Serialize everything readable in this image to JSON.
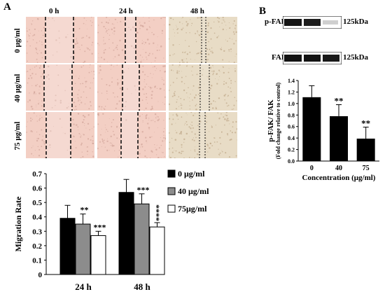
{
  "panel_a": {
    "letter": "A",
    "time_headers": [
      "0 h",
      "24 h",
      "48 h"
    ],
    "dose_labels": [
      "0 μg/ml",
      "40 μg/ml",
      "75 μg/ml"
    ]
  },
  "panel_b": {
    "letter": "B",
    "blot_rows": [
      {
        "label": "p-FAK",
        "size": "125kDa"
      },
      {
        "label": "FAK",
        "size": "125kDa"
      }
    ]
  },
  "colors": {
    "bar_black": "#000000",
    "bar_gray": "#8c8c8c",
    "bar_white": "#ffffff",
    "micro_pink": "#f3cfc4",
    "micro_beige": "#e8dcc6"
  },
  "chart_data": [
    {
      "type": "bar",
      "categories": [
        "24 h",
        "48 h"
      ],
      "series": [
        {
          "name": "0 μg/ml",
          "values": [
            0.39,
            0.57
          ],
          "errors": [
            0.09,
            0.09
          ],
          "marks": [
            "",
            ""
          ]
        },
        {
          "name": "40 μg/ml",
          "values": [
            0.35,
            0.49
          ],
          "errors": [
            0.07,
            0.07
          ],
          "marks": [
            "**",
            "***"
          ]
        },
        {
          "name": "75μg/ml",
          "values": [
            0.27,
            0.33
          ],
          "errors": [
            0.03,
            0.03
          ],
          "marks": [
            "***",
            "****"
          ]
        }
      ],
      "ylabel": "Migration Rate",
      "xlabel": "",
      "ylim": [
        0,
        0.7
      ],
      "yticks": [
        "0",
        "0.1",
        "0.2",
        "0.3",
        "0.4",
        "0.5",
        "0.6",
        "0.7"
      ],
      "legend_placement": "right"
    },
    {
      "type": "bar",
      "categories": [
        "0",
        "40",
        "75"
      ],
      "values": [
        1.11,
        0.78,
        0.39
      ],
      "errors": [
        0.2,
        0.2,
        0.2
      ],
      "marks": [
        "",
        "**",
        "**"
      ],
      "ylabel": "p-FAK/ FAK",
      "ylabel2": "(Fold change relative to control)",
      "xlabel": "Concentration (μg/ml)",
      "ylim": [
        0,
        1.4
      ],
      "yticks": [
        "0.0",
        "0.2",
        "0.4",
        "0.6",
        "0.8",
        "1.0",
        "1.2",
        "1.4"
      ]
    }
  ]
}
